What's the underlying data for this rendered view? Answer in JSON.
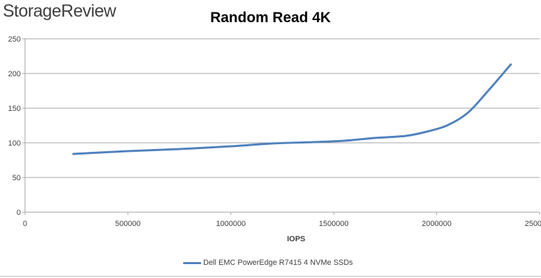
{
  "logo": {
    "text": "StorageReview"
  },
  "chart_data": {
    "type": "line",
    "title": "Random Read 4K",
    "xlabel": "IOPS",
    "ylabel": "",
    "xlim": [
      0,
      2500000
    ],
    "ylim": [
      0,
      250
    ],
    "x_ticks": [
      0,
      500000,
      1000000,
      1500000,
      2000000,
      2500000
    ],
    "x_tick_labels": [
      "0",
      "500000",
      "1000000",
      "1500000",
      "2000000",
      "2500000"
    ],
    "y_ticks": [
      0,
      50,
      100,
      150,
      200,
      250
    ],
    "y_tick_labels": [
      "0",
      "50",
      "100",
      "150",
      "200",
      "250"
    ],
    "grid": "horizontal",
    "legend_position": "bottom",
    "series": [
      {
        "name": "Dell EMC PowerEdge R7415 4 NVMe SSDs",
        "color": "#4f81bd",
        "x": [
          235000,
          500000,
          750000,
          1000000,
          1200000,
          1400000,
          1550000,
          1700000,
          1850000,
          1950000,
          2050000,
          2150000,
          2250000,
          2360000
        ],
        "y": [
          84,
          88,
          91,
          95,
          99,
          101,
          103,
          107,
          110,
          116,
          125,
          143,
          175,
          213
        ]
      }
    ]
  }
}
